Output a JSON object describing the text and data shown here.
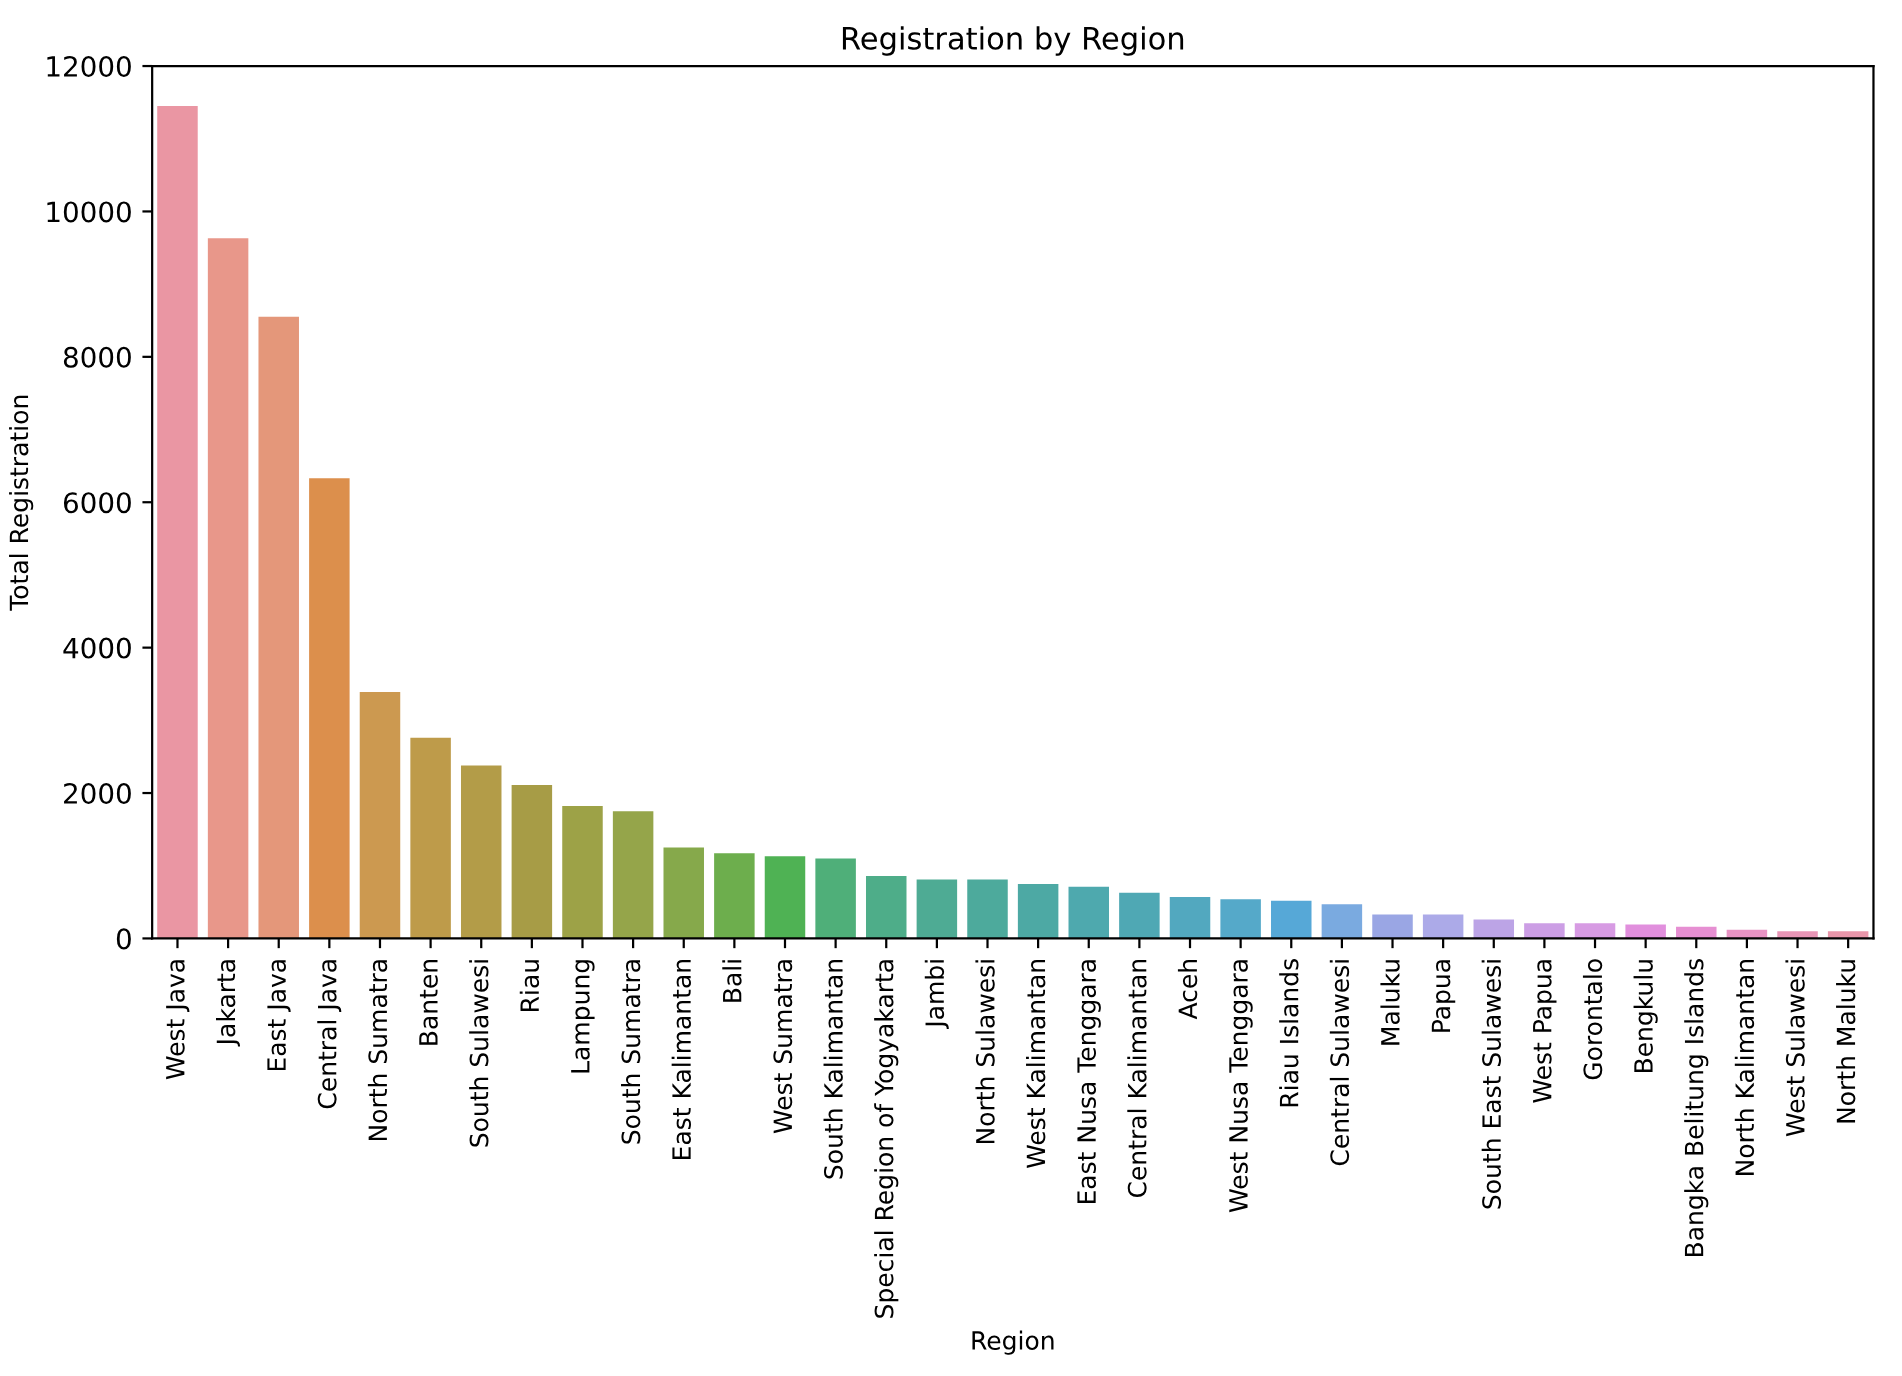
{
  "chart_data": {
    "type": "bar",
    "title": "Registration by Region",
    "xlabel": "Region",
    "ylabel": "Total Registration",
    "categories": [
      "West Java",
      "Jakarta",
      "East Java",
      "Central Java",
      "North Sumatra",
      "Banten",
      "South Sulawesi",
      "Riau",
      "Lampung",
      "South Sumatra",
      "East Kalimantan",
      "Bali",
      "West Sumatra",
      "South Kalimantan",
      "Special Region of Yogyakarta",
      "Jambi",
      "North Sulawesi",
      "West Kalimantan",
      "East Nusa Tenggara",
      "Central Kalimantan",
      "Aceh",
      "West Nusa Tenggara",
      "Riau Islands",
      "Central Sulawesi",
      "Maluku",
      "Papua",
      "South East Sulawesi",
      "West Papua",
      "Gorontalo",
      "Bengkulu",
      "Bangka Belitung Islands",
      "North Kalimantan",
      "West Sulawesi",
      "North Maluku"
    ],
    "values": [
      11450,
      9630,
      8550,
      6330,
      3390,
      2760,
      2380,
      2110,
      1820,
      1750,
      1250,
      1170,
      1130,
      1100,
      860,
      810,
      810,
      750,
      710,
      630,
      570,
      540,
      520,
      470,
      330,
      330,
      260,
      210,
      210,
      190,
      160,
      120,
      100,
      100
    ],
    "colors": [
      "#ea96a3",
      "#e8978a",
      "#e4977a",
      "#dc8f4c",
      "#cc9950",
      "#be9b4a",
      "#b39c48",
      "#a79c46",
      "#9da247",
      "#95a54a",
      "#86a94b",
      "#6dae4d",
      "#4fb254",
      "#4faf79",
      "#4ead89",
      "#4eab94",
      "#4daa9c",
      "#4da9a4",
      "#4ea9ae",
      "#4fa8b4",
      "#52a8bf",
      "#55a9c9",
      "#56a8d7",
      "#7aaae0",
      "#9aa6e4",
      "#acaae8",
      "#bca4e6",
      "#cc9ee5",
      "#d79be3",
      "#e18fdd",
      "#e68fd2",
      "#e893c4",
      "#e895b6",
      "#e996aa"
    ],
    "ylim": [
      0,
      12000
    ],
    "yticks": [
      0,
      2000,
      4000,
      6000,
      8000,
      10000,
      12000
    ],
    "grid": false
  }
}
